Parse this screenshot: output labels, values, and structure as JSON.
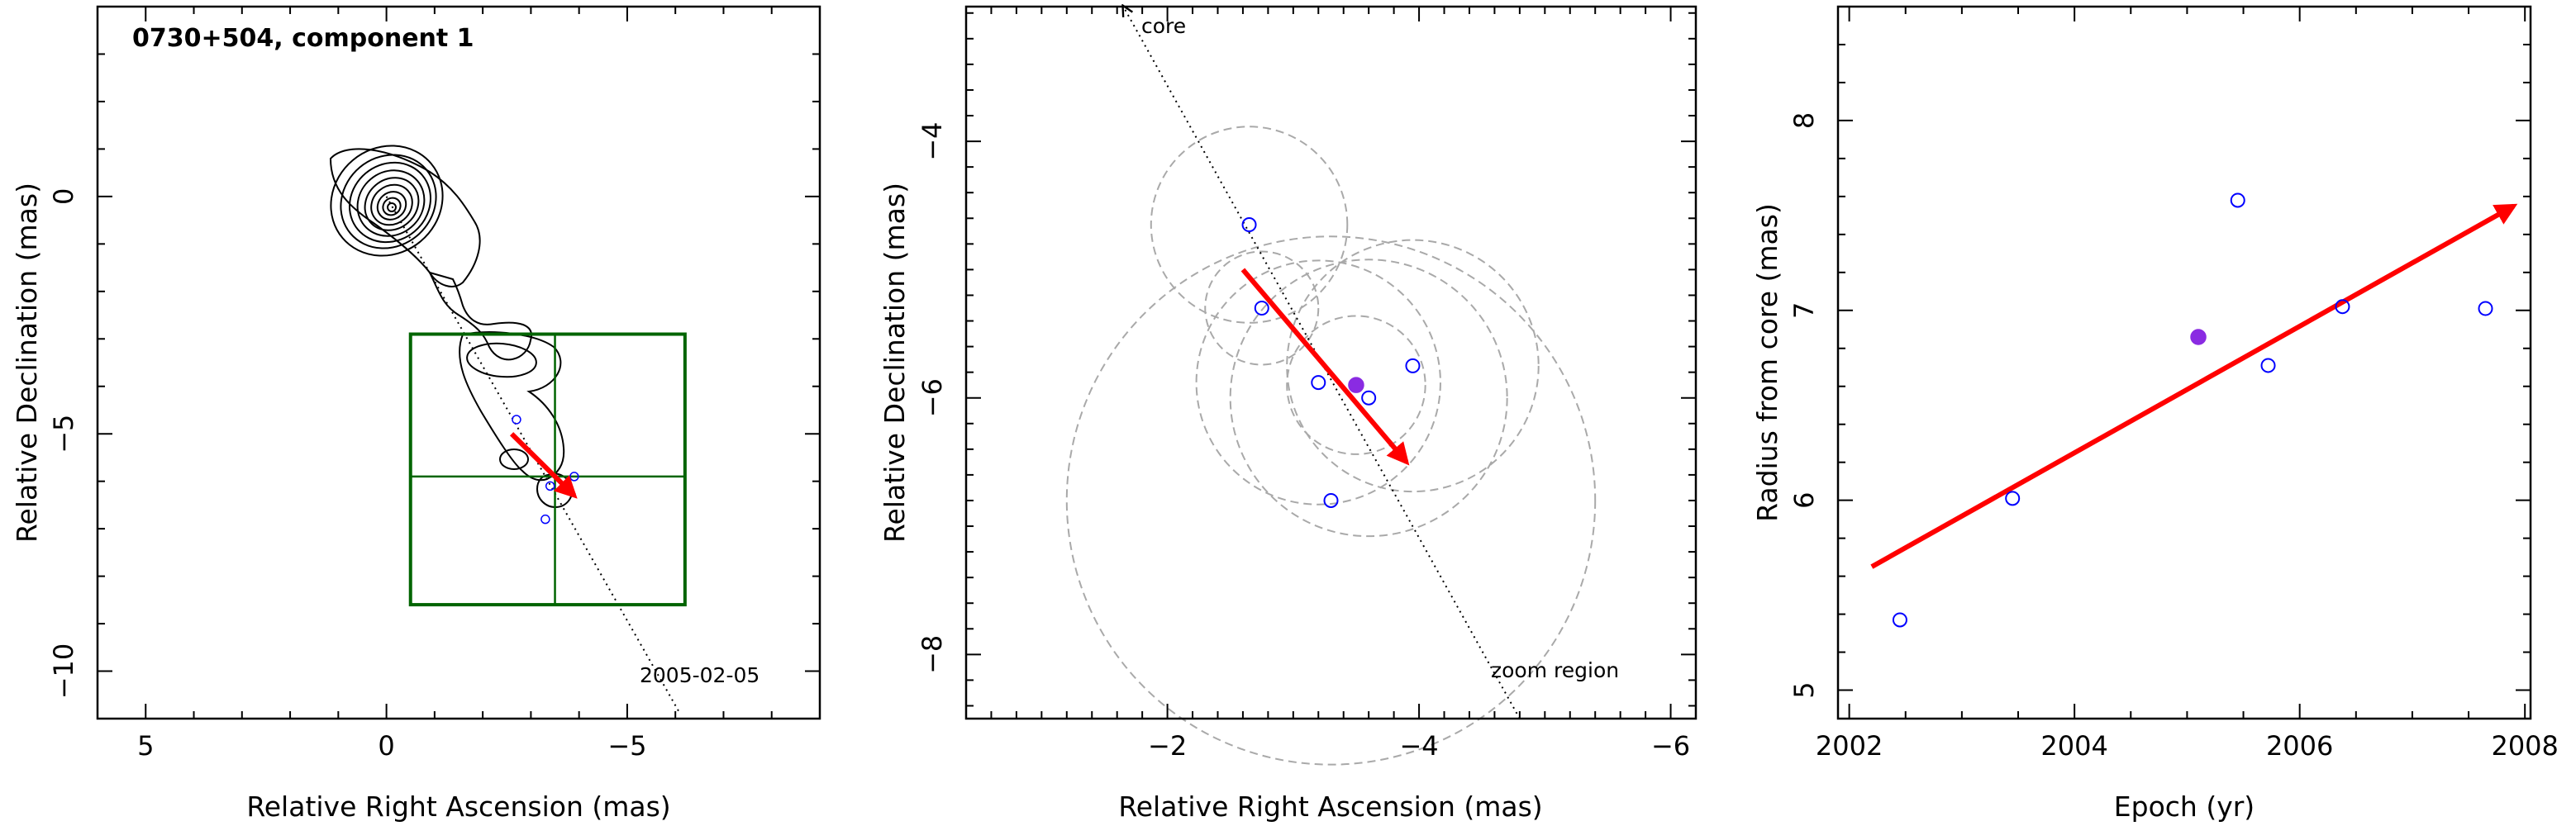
{
  "chart_data": [
    {
      "type": "contour",
      "title": "0730+504, component 1",
      "annotation": "2005-02-05",
      "xlabel": "Relative Right Ascension (mas)",
      "ylabel": "Relative Declination (mas)",
      "xlim": [
        6,
        -9
      ],
      "ylim": [
        -11,
        4
      ],
      "xticks": [
        5,
        0,
        -5
      ],
      "yticks": [
        0,
        -5,
        -10
      ],
      "components": [
        {
          "x": -2.7,
          "y": -4.7
        },
        {
          "x": -3.4,
          "y": -6.1
        },
        {
          "x": -3.9,
          "y": -5.9
        },
        {
          "x": -3.3,
          "y": -6.8
        }
      ],
      "motion_vector": {
        "from": [
          -2.6,
          -5.0
        ],
        "to": [
          -3.9,
          -6.3
        ],
        "color": "#ff0000"
      },
      "zoom_box": {
        "x": [
          -0.5,
          -6.2
        ],
        "y": [
          -2.9,
          -8.6
        ],
        "cross": [
          -3.5,
          -5.9
        ],
        "color": "#006400"
      },
      "core_line": {
        "from": [
          0.0,
          0.0
        ],
        "to": [
          -6.1,
          -10.9
        ]
      }
    },
    {
      "type": "scatter",
      "xlabel": "Relative Right Ascension (mas)",
      "ylabel": "Relative Declination (mas)",
      "xlim": [
        -0.4,
        -6.2
      ],
      "ylim": [
        -8.5,
        -2.95
      ],
      "xticks": [
        -2,
        -4,
        -6
      ],
      "yticks": [
        -4,
        -6,
        -8
      ],
      "core_label": "core",
      "zoom_label": "zoom region",
      "points": [
        {
          "x": -2.65,
          "y": -4.65,
          "r": 0.78,
          "filled": false
        },
        {
          "x": -2.75,
          "y": -5.3,
          "r": 0.45,
          "filled": false
        },
        {
          "x": -3.2,
          "y": -5.88,
          "r": 0.97,
          "filled": false
        },
        {
          "x": -3.5,
          "y": -5.9,
          "r": 0.55,
          "filled": true
        },
        {
          "x": -3.6,
          "y": -6.0,
          "r": 1.1,
          "filled": false
        },
        {
          "x": -3.95,
          "y": -5.75,
          "r": 1.0,
          "filled": false
        },
        {
          "x": -3.3,
          "y": -6.8,
          "r": 2.1,
          "filled": false
        }
      ],
      "motion_vector": {
        "from": [
          -2.6,
          -5.0
        ],
        "to": [
          -3.9,
          -6.5
        ],
        "color": "#ff0000"
      },
      "core_line": {
        "from": [
          -1.65,
          -2.95
        ],
        "to": [
          -4.8,
          -8.5
        ]
      }
    },
    {
      "type": "scatter",
      "xlabel": "Epoch (yr)",
      "ylabel": "Radius from core (mas)",
      "xlim": [
        2001.9,
        2008.05
      ],
      "ylim": [
        4.85,
        8.6
      ],
      "xticks": [
        2002,
        2004,
        2006,
        2008
      ],
      "yticks": [
        5,
        6,
        7,
        8
      ],
      "points": [
        {
          "x": 2002.45,
          "y": 5.37,
          "filled": false
        },
        {
          "x": 2003.45,
          "y": 6.01,
          "filled": false
        },
        {
          "x": 2005.1,
          "y": 6.86,
          "filled": true
        },
        {
          "x": 2005.45,
          "y": 7.58,
          "filled": false
        },
        {
          "x": 2005.72,
          "y": 6.71,
          "filled": false
        },
        {
          "x": 2006.38,
          "y": 7.02,
          "filled": false
        },
        {
          "x": 2007.65,
          "y": 7.01,
          "filled": false
        }
      ],
      "fit_line": {
        "from": [
          2002.2,
          5.65
        ],
        "to": [
          2007.9,
          7.55
        ],
        "color": "#ff0000"
      }
    }
  ]
}
